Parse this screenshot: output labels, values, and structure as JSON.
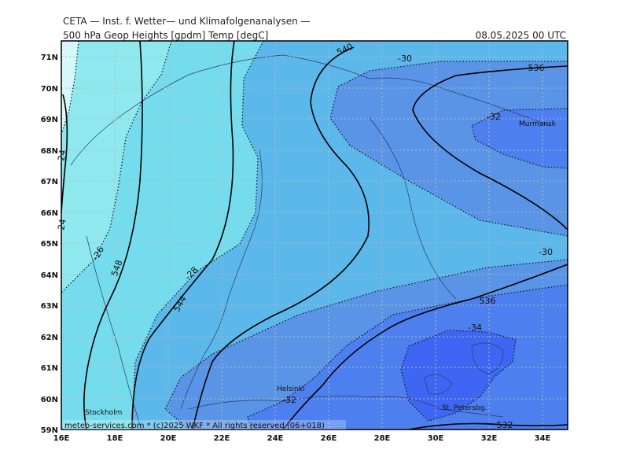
{
  "header": {
    "line1": "CETA — Inst. f. Wetter— und Klimafolgenanalysen —",
    "line2": "500 hPa Geop Heights [gpdm] Temp [degC]",
    "valid": "08.05.2025 00 UTC"
  },
  "axes": {
    "lon_labels": [
      "16E",
      "18E",
      "20E",
      "22E",
      "24E",
      "26E",
      "28E",
      "30E",
      "32E",
      "34E"
    ],
    "lat_labels": [
      "71N",
      "70N",
      "69N",
      "68N",
      "67N",
      "66N",
      "65N",
      "64N",
      "63N",
      "62N",
      "61N",
      "60N",
      "59N"
    ]
  },
  "contours": {
    "height_labels": [
      "548",
      "544",
      "540",
      "536",
      "536",
      "532"
    ],
    "temp_labels": [
      "-24",
      "-24",
      "-26",
      "-28",
      "-30",
      "-32",
      "-30",
      "-34",
      "-32"
    ]
  },
  "cities": [
    "Murmansk",
    "Helsinki",
    "Stockholm",
    "St. Petersbg."
  ],
  "credit": "meteo-services.com * (c)2025 WKF * All rights reserved (06+018)",
  "colors": {
    "temp_-24": "#8ee8ee",
    "temp_-26": "#74dcec",
    "temp_-28": "#5cb8ea",
    "temp_-30": "#5a94e6",
    "temp_-32": "#4d7fee",
    "temp_-34": "#3f66f2"
  }
}
